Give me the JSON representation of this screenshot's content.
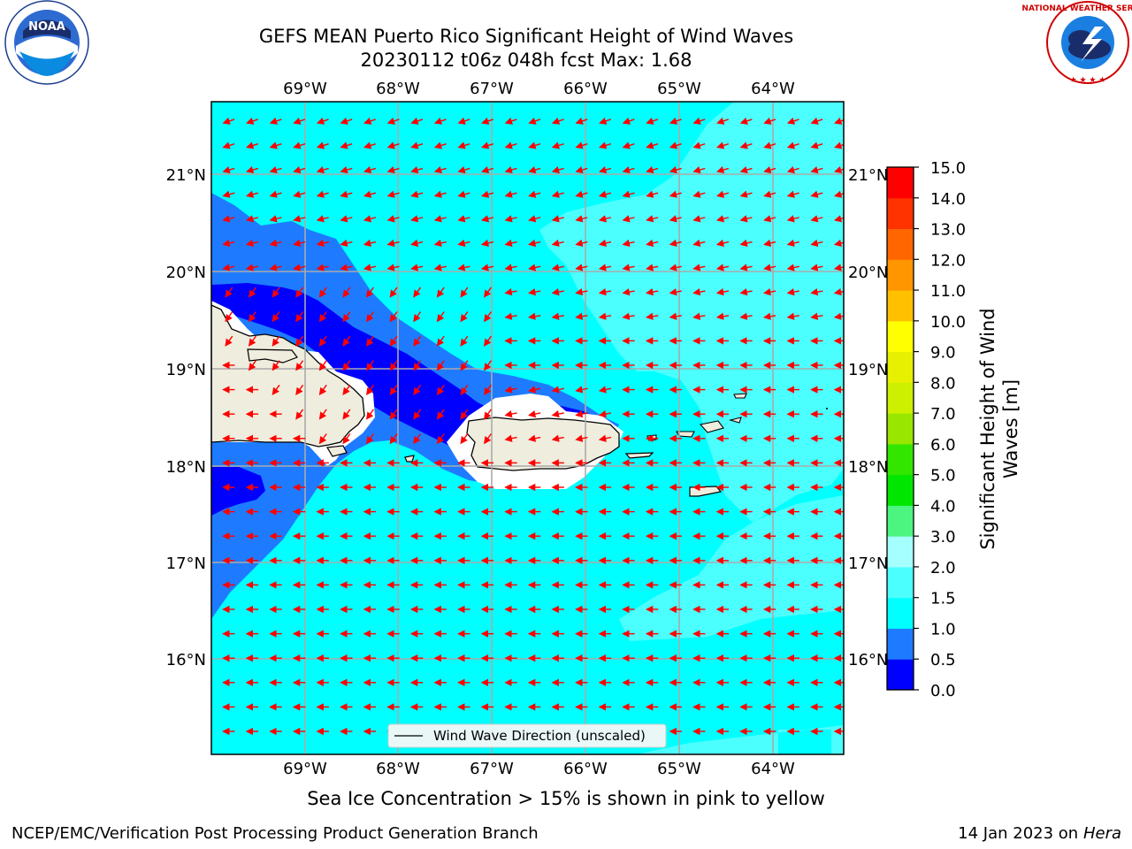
{
  "title": {
    "line1": "GEFS MEAN Puerto Rico Significant Height of Wind Waves",
    "line2": "20230112 t06z 048h fcst   Max: 1.68"
  },
  "map": {
    "lon_labels": [
      "69°W",
      "68°W",
      "67°W",
      "66°W",
      "65°W",
      "64°W"
    ],
    "lat_labels": [
      "21°N",
      "20°N",
      "19°N",
      "18°N",
      "17°N",
      "16°N"
    ],
    "legend_label": "Wind Wave Direction (unscaled)"
  },
  "colorbar": {
    "label_line1": "Significant Height of Wind",
    "label_line2": "Waves [m]",
    "ticks": [
      "0.0",
      "0.5",
      "1.0",
      "1.5",
      "2.0",
      "3.0",
      "4.0",
      "5.0",
      "6.0",
      "7.0",
      "8.0",
      "9.0",
      "10.0",
      "11.0",
      "12.0",
      "13.0",
      "14.0",
      "15.0"
    ],
    "colors": [
      "#0000ff",
      "#1e7bff",
      "#00ffff",
      "#4cffff",
      "#a6ffff",
      "#4cf580",
      "#00e600",
      "#33e600",
      "#99e600",
      "#ccf000",
      "#e6f000",
      "#ffff00",
      "#ffc000",
      "#ff9600",
      "#ff6600",
      "#ff3300",
      "#ff0000"
    ]
  },
  "colors": {
    "land": "#efedde",
    "arrow": "#ff0000",
    "grid": "#aaaaaa",
    "no_data": "#ffffff"
  },
  "note": "Sea Ice Concentration > 15% is shown in pink to yellow",
  "footer": {
    "left": "NCEP/EMC/Verification Post Processing Product Generation Branch",
    "right_date": "14 Jan 2023 on ",
    "right_host": "Hera"
  },
  "logos": {
    "noaa_text": "NOAA",
    "nws_text": "NATIONAL WEATHER SERVICE"
  }
}
